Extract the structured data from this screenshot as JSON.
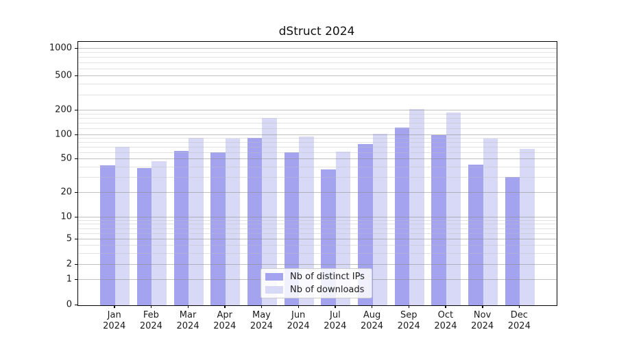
{
  "title": "dStruct 2024",
  "chart_data": {
    "type": "bar",
    "title": "dStruct 2024",
    "categories": [
      "Jan",
      "Feb",
      "Mar",
      "Apr",
      "May",
      "Jun",
      "Jul",
      "Aug",
      "Sep",
      "Oct",
      "Nov",
      "Dec"
    ],
    "category_year": "2024",
    "series": [
      {
        "name": "Nb of distinct IPs",
        "color": "#a3a3ef",
        "values": [
          42,
          39,
          64,
          61,
          92,
          61,
          38,
          77,
          124,
          100,
          43,
          31
        ]
      },
      {
        "name": "Nb of downloads",
        "color": "#d8d8f7",
        "values": [
          71,
          47,
          92,
          91,
          162,
          97,
          62,
          104,
          207,
          190,
          90,
          67
        ]
      }
    ],
    "xlabel": "",
    "ylabel": "",
    "yscale": "symlog",
    "yticks": [
      0,
      1,
      2,
      5,
      10,
      20,
      50,
      100,
      200,
      500,
      1000
    ],
    "ylim": [
      0,
      1200
    ],
    "grid": "horizontal major and minor gridlines drawn over bars",
    "legend_position": "lower center inside plot",
    "legend_entries": [
      "Nb of distinct IPs",
      "Nb of downloads"
    ]
  }
}
